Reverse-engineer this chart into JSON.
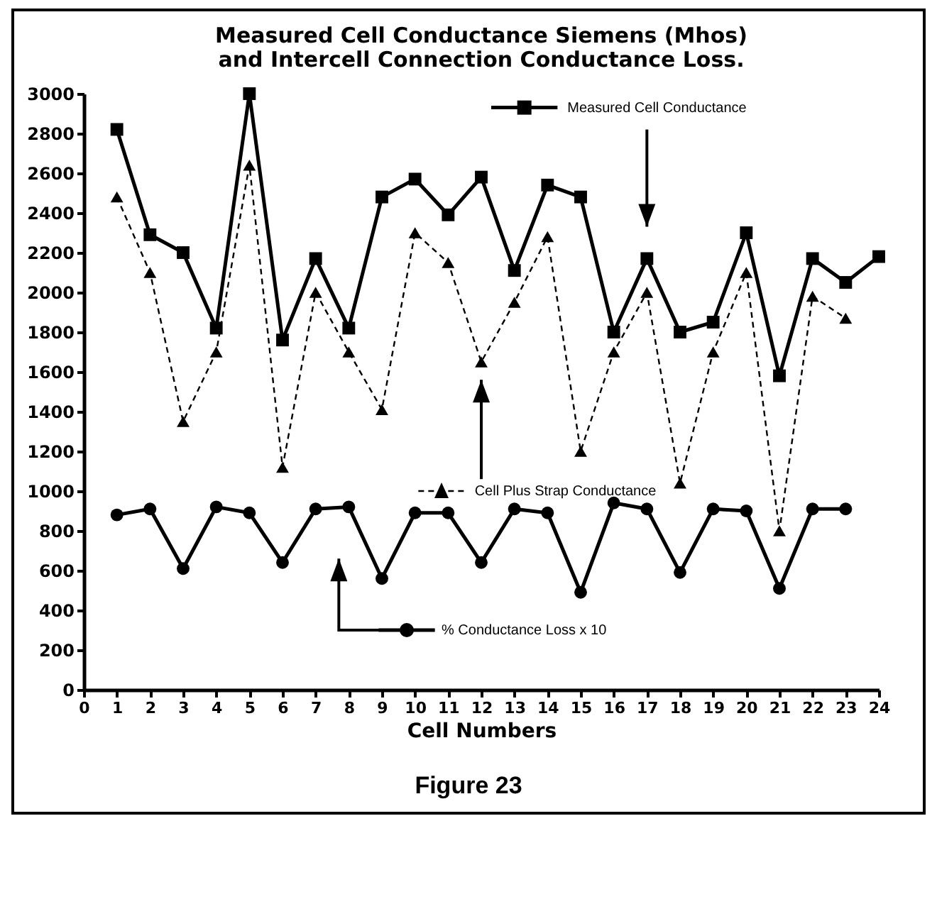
{
  "chart_data": {
    "type": "line",
    "title": "Measured Cell Conductance Siemens (Mhos)\nand Intercell Connection Conductance Loss.",
    "xlabel": "Cell Numbers",
    "annotations": [
      "Figure 23"
    ],
    "series": [
      {
        "name": "Measured Cell Conductance",
        "color": "#000000",
        "marker": "square",
        "line_style": "solid",
        "x": [
          1,
          2,
          3,
          4,
          5,
          6,
          7,
          8,
          9,
          10,
          11,
          12,
          13,
          14,
          15,
          16,
          17,
          18,
          19,
          20,
          21,
          22,
          23,
          24
        ],
        "values": [
          2820,
          2290,
          2200,
          1820,
          3000,
          1760,
          2170,
          1820,
          2480,
          2570,
          2390,
          2580,
          2110,
          2540,
          2480,
          1800,
          2170,
          1800,
          1850,
          2300,
          1580,
          2170,
          2050,
          2180
        ]
      },
      {
        "name": "Cell Plus Strap Conductance",
        "color": "#000000",
        "marker": "triangle",
        "line_style": "dashed",
        "x": [
          1,
          2,
          3,
          4,
          5,
          6,
          7,
          8,
          9,
          10,
          11,
          12,
          13,
          14,
          15,
          16,
          17,
          18,
          19,
          20,
          21,
          22,
          23
        ],
        "values": [
          2480,
          2100,
          1350,
          1700,
          2640,
          1120,
          2000,
          1700,
          1410,
          2300,
          2150,
          1650,
          1950,
          2280,
          1200,
          1700,
          2000,
          1040,
          1700,
          2100,
          800,
          1980,
          1870
        ]
      },
      {
        "name": "% Conductance Loss x 10",
        "color": "#000000",
        "marker": "circle",
        "line_style": "solid",
        "x": [
          1,
          2,
          3,
          4,
          5,
          6,
          7,
          8,
          9,
          10,
          11,
          12,
          13,
          14,
          15,
          16,
          17,
          18,
          19,
          20,
          21,
          22,
          23
        ],
        "values": [
          880,
          910,
          610,
          920,
          890,
          640,
          910,
          920,
          560,
          890,
          890,
          640,
          910,
          890,
          490,
          940,
          910,
          590,
          910,
          900,
          510,
          910,
          910
        ]
      }
    ],
    "xlim": [
      0,
      24
    ],
    "xticks": [
      0,
      1,
      2,
      3,
      4,
      5,
      6,
      7,
      8,
      9,
      10,
      11,
      12,
      13,
      14,
      15,
      16,
      17,
      18,
      19,
      20,
      21,
      22,
      23,
      24
    ],
    "ylim": [
      0,
      3000
    ],
    "yticks": [
      0,
      200,
      400,
      600,
      800,
      1000,
      1200,
      1400,
      1600,
      1800,
      2000,
      2200,
      2400,
      2600,
      2800,
      3000
    ],
    "grid": false,
    "legend": "top"
  }
}
